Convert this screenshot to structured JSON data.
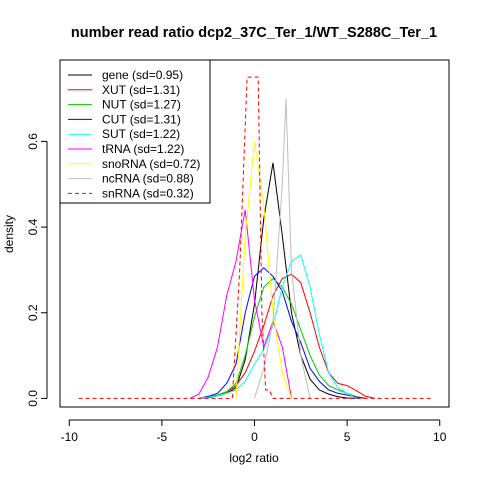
{
  "chart_data": {
    "type": "line",
    "title": "number read ratio dcp2_37C_Ter_1/WT_S288C_Ter_1",
    "xlabel": "log2 ratio",
    "ylabel": "density",
    "xlim": [
      -10.5,
      10.5
    ],
    "ylim": [
      -0.02,
      0.79
    ],
    "xticks": [
      -10,
      -5,
      0,
      5,
      10
    ],
    "xtick_labels": [
      "-10",
      "-5",
      "0",
      "5",
      "10"
    ],
    "yticks": [
      0.0,
      0.2,
      0.4,
      0.6
    ],
    "ytick_labels": [
      "0.0",
      "0.2",
      "0.4",
      "0.6"
    ],
    "legend_position": "top-left",
    "series": [
      {
        "name": "gene (sd=0.95)",
        "color": "#000000",
        "dash": false,
        "x": [
          -3.0,
          -2.5,
          -2.0,
          -1.5,
          -1.0,
          -0.5,
          0.0,
          0.5,
          1.0,
          1.5,
          2.0,
          2.5,
          3.0,
          3.5,
          4.0,
          4.5,
          5.0,
          5.5
        ],
        "y": [
          0.0,
          0.002,
          0.006,
          0.012,
          0.025,
          0.09,
          0.22,
          0.42,
          0.55,
          0.38,
          0.2,
          0.1,
          0.045,
          0.02,
          0.01,
          0.004,
          0.001,
          0.0
        ]
      },
      {
        "name": "XUT (sd=1.31)",
        "color": "#ff0000",
        "dash": false,
        "x": [
          -3.0,
          -2.5,
          -2.0,
          -1.5,
          -1.0,
          -0.5,
          0.0,
          0.5,
          1.0,
          1.5,
          2.0,
          2.5,
          3.0,
          3.5,
          4.0,
          4.5,
          5.0,
          5.5,
          6.0,
          6.5
        ],
        "y": [
          0.0,
          0.004,
          0.008,
          0.015,
          0.03,
          0.06,
          0.11,
          0.17,
          0.24,
          0.28,
          0.29,
          0.27,
          0.2,
          0.12,
          0.06,
          0.035,
          0.03,
          0.018,
          0.005,
          0.0
        ]
      },
      {
        "name": "NUT (sd=1.27)",
        "color": "#00cd00",
        "dash": false,
        "x": [
          -3.0,
          -2.5,
          -2.0,
          -1.5,
          -1.0,
          -0.5,
          0.0,
          0.5,
          1.0,
          1.5,
          2.0,
          2.5,
          3.0,
          3.5,
          4.0,
          4.5,
          5.0,
          5.5,
          6.0
        ],
        "y": [
          0.0,
          0.004,
          0.008,
          0.016,
          0.035,
          0.1,
          0.19,
          0.26,
          0.28,
          0.26,
          0.22,
          0.16,
          0.1,
          0.055,
          0.03,
          0.02,
          0.012,
          0.004,
          0.0
        ]
      },
      {
        "name": "CUT (sd=1.31)",
        "color": "#0000ff",
        "dash": false,
        "x": [
          -3.0,
          -2.5,
          -2.0,
          -1.5,
          -1.0,
          -0.5,
          0.0,
          0.5,
          1.0,
          1.5,
          2.0,
          2.5,
          3.0,
          3.5,
          4.0,
          4.5,
          5.0,
          5.5,
          6.0
        ],
        "y": [
          0.0,
          0.005,
          0.012,
          0.035,
          0.08,
          0.2,
          0.285,
          0.305,
          0.285,
          0.25,
          0.18,
          0.13,
          0.07,
          0.04,
          0.02,
          0.012,
          0.008,
          0.003,
          0.0
        ]
      },
      {
        "name": "SUT (sd=1.22)",
        "color": "#00ffff",
        "dash": false,
        "x": [
          -3.0,
          -2.5,
          -2.0,
          -1.5,
          -1.0,
          -0.5,
          0.0,
          0.5,
          1.0,
          1.5,
          2.0,
          2.5,
          3.0,
          3.5,
          4.0,
          4.5,
          5.0,
          5.5
        ],
        "y": [
          0.0,
          0.003,
          0.006,
          0.012,
          0.02,
          0.04,
          0.08,
          0.115,
          0.17,
          0.26,
          0.32,
          0.335,
          0.26,
          0.15,
          0.06,
          0.025,
          0.012,
          0.0
        ]
      },
      {
        "name": "tRNA (sd=1.22)",
        "color": "#ff00ff",
        "dash": false,
        "x": [
          -3.5,
          -3.0,
          -2.5,
          -2.0,
          -1.5,
          -1.0,
          -0.5,
          0.0,
          0.5,
          1.0,
          1.5,
          2.0
        ],
        "y": [
          0.0,
          0.01,
          0.05,
          0.12,
          0.24,
          0.32,
          0.44,
          0.23,
          0.12,
          0.18,
          0.12,
          0.0
        ]
      },
      {
        "name": "snoRNA (sd=0.72)",
        "color": "#ffff00",
        "dash": false,
        "x": [
          -1.0,
          -0.5,
          0.0,
          0.5,
          1.0,
          1.5,
          2.0
        ],
        "y": [
          0.0,
          0.38,
          0.6,
          0.45,
          0.2,
          0.06,
          0.0
        ]
      },
      {
        "name": "ncRNA (sd=0.88)",
        "color": "#bebebe",
        "dash": false,
        "x": [
          0.0,
          0.5,
          1.0,
          1.5,
          1.7,
          2.0,
          2.5,
          3.0
        ],
        "y": [
          0.0,
          0.07,
          0.18,
          0.5,
          0.7,
          0.3,
          0.1,
          0.0
        ]
      },
      {
        "name": "snRNA (sd=0.32)",
        "color": "#ff0000",
        "dash": true,
        "x": [
          -9.5,
          -1.2,
          -0.8,
          -0.4,
          0.0,
          0.2,
          0.4,
          0.6,
          0.8,
          1.0,
          9.5
        ],
        "y": [
          0.0,
          0.0,
          0.3,
          0.75,
          0.75,
          0.75,
          0.2,
          0.02,
          0.02,
          0.0,
          0.0
        ]
      }
    ]
  }
}
